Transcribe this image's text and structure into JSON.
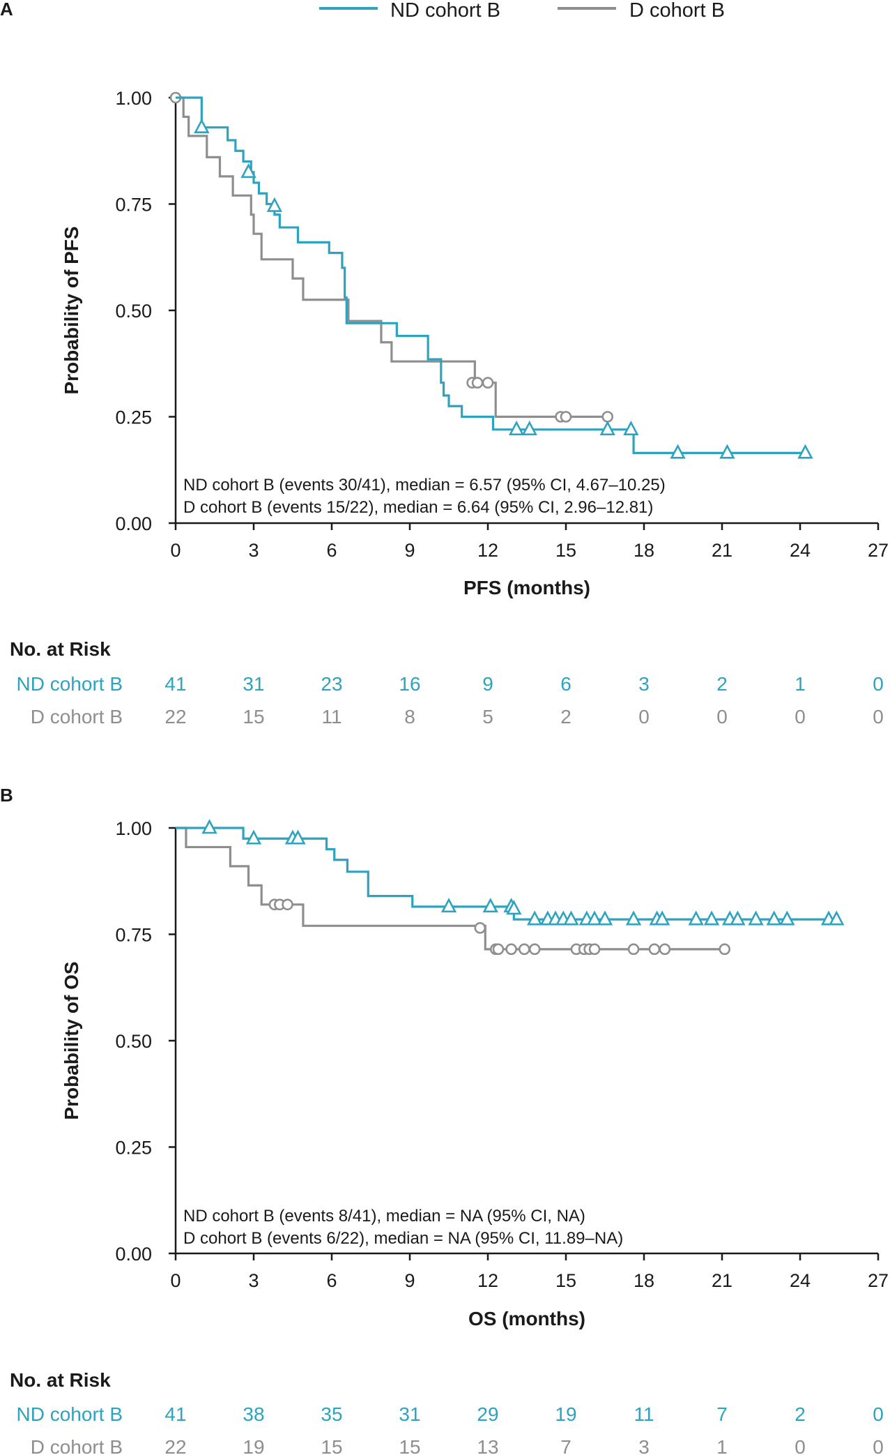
{
  "colors": {
    "nd": "#2da3bf",
    "d": "#8e8e8e",
    "axis": "#1a1a1a"
  },
  "legend": {
    "nd_label": "ND cohort B",
    "d_label": "D cohort B"
  },
  "chart_data": [
    {
      "panel": "A",
      "type": "line",
      "step": true,
      "xlabel": "PFS (months)",
      "ylabel": "Probability of PFS",
      "xlim": [
        0,
        27
      ],
      "ylim": [
        0,
        1
      ],
      "xticks": [
        "0",
        "3",
        "6",
        "9",
        "12",
        "15",
        "18",
        "21",
        "24",
        "27"
      ],
      "yticks": [
        "0.00",
        "0.25",
        "0.50",
        "0.75",
        "1.00"
      ],
      "annotations": [
        "ND cohort B (events 30/41), median = 6.57 (95% CI, 4.67–10.25)",
        "D cohort B (events 15/22), median = 6.64 (95% CI, 2.96–12.81)"
      ],
      "series": [
        {
          "name": "ND cohort B",
          "color_key": "nd",
          "marker": "triangle",
          "x": [
            0,
            1.0,
            2.0,
            2.3,
            2.6,
            2.9,
            3.0,
            3.2,
            3.5,
            3.8,
            4.0,
            4.7,
            5.9,
            6.4,
            6.5,
            6.57,
            8.5,
            9.7,
            10.2,
            10.3,
            10.5,
            11.0,
            12.2,
            17.6
          ],
          "y": [
            1.0,
            0.93,
            0.9,
            0.875,
            0.85,
            0.825,
            0.8,
            0.775,
            0.75,
            0.725,
            0.695,
            0.66,
            0.635,
            0.6,
            0.53,
            0.47,
            0.44,
            0.385,
            0.33,
            0.3,
            0.275,
            0.25,
            0.22,
            0.165
          ],
          "censored": [
            [
              1.0,
              0.93
            ],
            [
              2.8,
              0.825
            ],
            [
              3.8,
              0.745
            ],
            [
              13.1,
              0.22
            ],
            [
              13.6,
              0.22
            ],
            [
              16.6,
              0.22
            ],
            [
              17.5,
              0.22
            ],
            [
              19.3,
              0.165
            ],
            [
              21.2,
              0.165
            ],
            [
              24.2,
              0.165
            ]
          ]
        },
        {
          "name": "D cohort B",
          "color_key": "d",
          "marker": "circle",
          "x": [
            0,
            0.3,
            0.5,
            1.2,
            1.7,
            2.2,
            2.9,
            3.0,
            3.3,
            4.5,
            4.9,
            6.64,
            7.9,
            8.3,
            11.5,
            12.3
          ],
          "y": [
            1.0,
            0.955,
            0.91,
            0.86,
            0.815,
            0.77,
            0.725,
            0.68,
            0.62,
            0.575,
            0.525,
            0.475,
            0.425,
            0.38,
            0.33,
            0.25
          ],
          "censored": [
            [
              0,
              1.0
            ],
            [
              11.4,
              0.33
            ],
            [
              11.6,
              0.33
            ],
            [
              12.0,
              0.33
            ],
            [
              14.8,
              0.25
            ],
            [
              15.0,
              0.25
            ],
            [
              16.6,
              0.25
            ]
          ]
        }
      ],
      "risk": {
        "title": "No. at Risk",
        "rows": [
          {
            "label": "ND cohort B",
            "color_key": "nd",
            "values": [
              "41",
              "31",
              "23",
              "16",
              "9",
              "6",
              "3",
              "2",
              "1",
              "0"
            ]
          },
          {
            "label": "D cohort B",
            "color_key": "d",
            "values": [
              "22",
              "15",
              "11",
              "8",
              "5",
              "2",
              "0",
              "0",
              "0",
              "0"
            ]
          }
        ]
      }
    },
    {
      "panel": "B",
      "type": "line",
      "step": true,
      "xlabel": "OS (months)",
      "ylabel": "Probability of OS",
      "xlim": [
        0,
        27
      ],
      "ylim": [
        0,
        1
      ],
      "xticks": [
        "0",
        "3",
        "6",
        "9",
        "12",
        "15",
        "18",
        "21",
        "24",
        "27"
      ],
      "yticks": [
        "0.00",
        "0.25",
        "0.50",
        "0.75",
        "1.00"
      ],
      "annotations": [
        "ND cohort B (events 8/41), median = NA (95% CI, NA)",
        "D cohort B (events 6/22), median = NA (95% CI, 11.89–NA)"
      ],
      "series": [
        {
          "name": "ND cohort B",
          "color_key": "nd",
          "marker": "triangle",
          "x": [
            0,
            2.6,
            5.8,
            6.1,
            6.6,
            7.4,
            9.1,
            13.0
          ],
          "y": [
            1.0,
            0.975,
            0.95,
            0.925,
            0.897,
            0.84,
            0.815,
            0.785
          ],
          "censored": [
            [
              1.3,
              1.0
            ],
            [
              3.0,
              0.975
            ],
            [
              4.5,
              0.975
            ],
            [
              4.7,
              0.975
            ],
            [
              10.5,
              0.815
            ],
            [
              12.1,
              0.815
            ],
            [
              12.9,
              0.815
            ],
            [
              13.0,
              0.81
            ],
            [
              13.8,
              0.785
            ],
            [
              14.3,
              0.785
            ],
            [
              14.6,
              0.785
            ],
            [
              14.9,
              0.785
            ],
            [
              15.2,
              0.785
            ],
            [
              15.8,
              0.785
            ],
            [
              16.1,
              0.785
            ],
            [
              16.5,
              0.785
            ],
            [
              17.6,
              0.785
            ],
            [
              18.5,
              0.785
            ],
            [
              18.7,
              0.785
            ],
            [
              20.0,
              0.785
            ],
            [
              20.6,
              0.785
            ],
            [
              21.3,
              0.785
            ],
            [
              21.6,
              0.785
            ],
            [
              22.3,
              0.785
            ],
            [
              23.0,
              0.785
            ],
            [
              23.5,
              0.785
            ],
            [
              25.1,
              0.785
            ],
            [
              25.4,
              0.785
            ]
          ]
        },
        {
          "name": "D cohort B",
          "color_key": "d",
          "marker": "circle",
          "x": [
            0,
            0.4,
            2.1,
            2.8,
            3.3,
            4.9,
            11.9
          ],
          "y": [
            1.0,
            0.955,
            0.91,
            0.865,
            0.82,
            0.77,
            0.715
          ],
          "censored": [
            [
              3.8,
              0.82
            ],
            [
              4.0,
              0.82
            ],
            [
              4.3,
              0.82
            ],
            [
              11.7,
              0.765
            ],
            [
              12.3,
              0.715
            ],
            [
              12.4,
              0.715
            ],
            [
              12.9,
              0.715
            ],
            [
              13.4,
              0.715
            ],
            [
              13.8,
              0.715
            ],
            [
              15.4,
              0.715
            ],
            [
              15.7,
              0.715
            ],
            [
              15.9,
              0.715
            ],
            [
              16.1,
              0.715
            ],
            [
              17.6,
              0.715
            ],
            [
              18.4,
              0.715
            ],
            [
              18.8,
              0.715
            ],
            [
              21.1,
              0.715
            ]
          ]
        }
      ],
      "risk": {
        "title": "No. at Risk",
        "rows": [
          {
            "label": "ND cohort B",
            "color_key": "nd",
            "values": [
              "41",
              "38",
              "35",
              "31",
              "29",
              "19",
              "11",
              "7",
              "2",
              "0"
            ]
          },
          {
            "label": "D cohort B",
            "color_key": "d",
            "values": [
              "22",
              "19",
              "15",
              "15",
              "13",
              "7",
              "3",
              "1",
              "0",
              "0"
            ]
          }
        ]
      }
    }
  ]
}
